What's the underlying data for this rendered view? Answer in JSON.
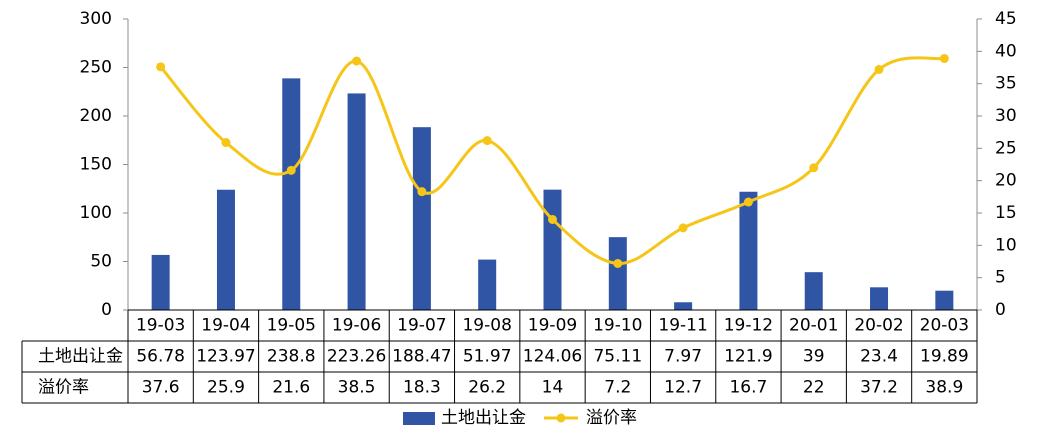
{
  "chart_data": {
    "type": "bar",
    "categories": [
      "19-03",
      "19-04",
      "19-05",
      "19-06",
      "19-07",
      "19-08",
      "19-09",
      "19-10",
      "19-11",
      "19-12",
      "20-01",
      "20-02",
      "20-03"
    ],
    "series": [
      {
        "name": "土地出让金",
        "type": "bar",
        "axis": "left",
        "color": "#2F55A4",
        "values": [
          56.78,
          123.97,
          238.8,
          223.26,
          188.47,
          51.97,
          124.06,
          75.11,
          7.97,
          121.9,
          39,
          23.4,
          19.89
        ],
        "labels": [
          "56.78",
          "123.97",
          "238.8",
          "223.26",
          "188.47",
          "51.97",
          "124.06",
          "75.11",
          "7.97",
          "121.9",
          "39",
          "23.4",
          "19.89"
        ]
      },
      {
        "name": "溢价率",
        "type": "line",
        "axis": "right",
        "color": "#F5C518",
        "smooth": true,
        "values": [
          37.6,
          25.9,
          21.6,
          38.5,
          18.3,
          26.2,
          14,
          7.2,
          12.7,
          16.7,
          22,
          37.2,
          38.9
        ],
        "labels": [
          "37.6",
          "25.9",
          "21.6",
          "38.5",
          "18.3",
          "26.2",
          "14",
          "7.2",
          "12.7",
          "16.7",
          "22",
          "37.2",
          "38.9"
        ]
      }
    ],
    "y_left": {
      "range": [
        0,
        300
      ],
      "ticks": [
        "0",
        "50",
        "100",
        "150",
        "200",
        "250",
        "300"
      ]
    },
    "y_right": {
      "range": [
        0,
        45
      ],
      "ticks": [
        "0",
        "5",
        "10",
        "15",
        "20",
        "25",
        "30",
        "35",
        "40",
        "45"
      ]
    },
    "data_table": true,
    "grid": false,
    "legend_position": "bottom"
  }
}
